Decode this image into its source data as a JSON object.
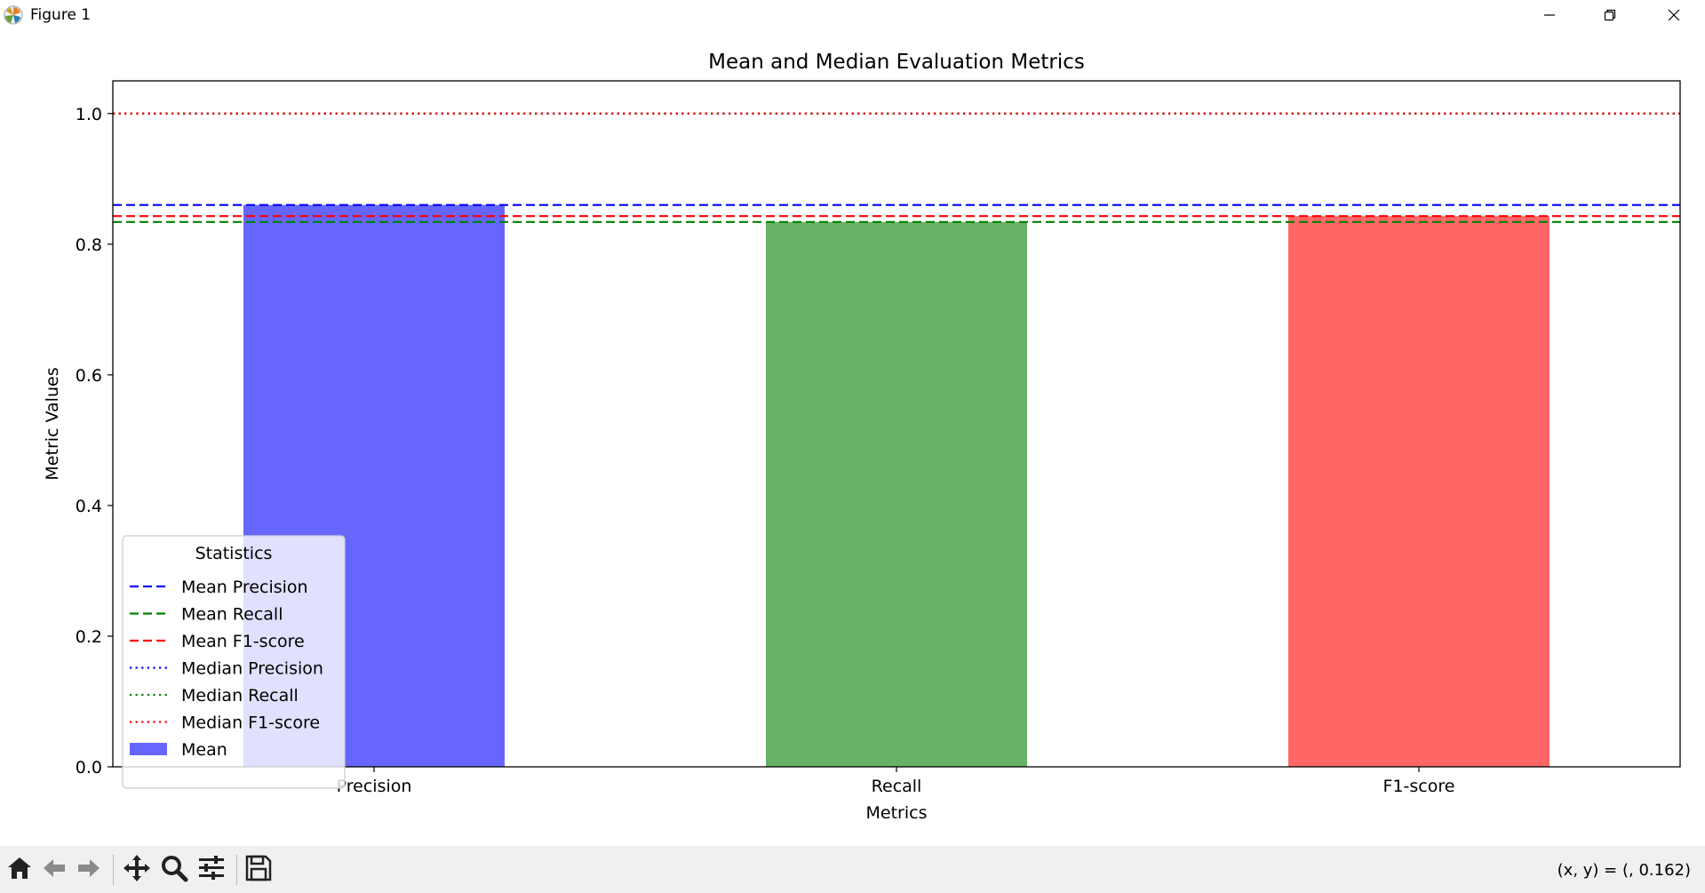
{
  "window": {
    "title": "Figure 1",
    "controls": [
      "minimize-icon",
      "restore-icon",
      "close-icon"
    ]
  },
  "toolbar": {
    "tools": [
      "home-icon",
      "back-arrow-icon",
      "forward-arrow-icon",
      "pan-icon",
      "zoom-icon",
      "configure-subplots-icon",
      "save-icon"
    ],
    "coords_text": "(x, y) = (, 0.162)"
  },
  "chart_data": {
    "type": "bar",
    "title": "Mean and Median Evaluation Metrics",
    "xlabel": "Metrics",
    "ylabel": "Metric Values",
    "categories": [
      "Precision",
      "Recall",
      "F1-score"
    ],
    "ylim": [
      0,
      1.05
    ],
    "yticks": [
      0.0,
      0.2,
      0.4,
      0.6,
      0.8,
      1.0
    ],
    "ytick_labels": [
      "0.0",
      "0.2",
      "0.4",
      "0.6",
      "0.8",
      "1.0"
    ],
    "grid": false,
    "series": [
      {
        "name": "Mean",
        "values": [
          0.86,
          0.834,
          0.843
        ],
        "colors": [
          "#6666ff",
          "#66b266",
          "#ff6666"
        ]
      }
    ],
    "reference_lines": [
      {
        "name": "Mean Precision",
        "y": 0.86,
        "color": "#0000ff",
        "style": "dashed"
      },
      {
        "name": "Mean Recall",
        "y": 0.834,
        "color": "#008000",
        "style": "dashed"
      },
      {
        "name": "Mean F1-score",
        "y": 0.843,
        "color": "#ff0000",
        "style": "dashed"
      },
      {
        "name": "Median Precision",
        "y": 1.0,
        "color": "#0000ff",
        "style": "dotted"
      },
      {
        "name": "Median Recall",
        "y": 1.0,
        "color": "#008000",
        "style": "dotted"
      },
      {
        "name": "Median F1-score",
        "y": 1.0,
        "color": "#ff0000",
        "style": "dotted"
      }
    ],
    "legend": {
      "title": "Statistics",
      "placement": "lower-left",
      "entries": [
        {
          "label": "Mean Precision",
          "color": "#0000ff",
          "style": "dashed"
        },
        {
          "label": "Mean Recall",
          "color": "#008000",
          "style": "dashed"
        },
        {
          "label": "Mean F1-score",
          "color": "#ff0000",
          "style": "dashed"
        },
        {
          "label": "Median Precision",
          "color": "#0000ff",
          "style": "dotted"
        },
        {
          "label": "Median Recall",
          "color": "#008000",
          "style": "dotted"
        },
        {
          "label": "Median F1-score",
          "color": "#ff0000",
          "style": "dotted"
        },
        {
          "label": "Mean",
          "color": "#6666ff",
          "style": "patch"
        }
      ]
    }
  }
}
